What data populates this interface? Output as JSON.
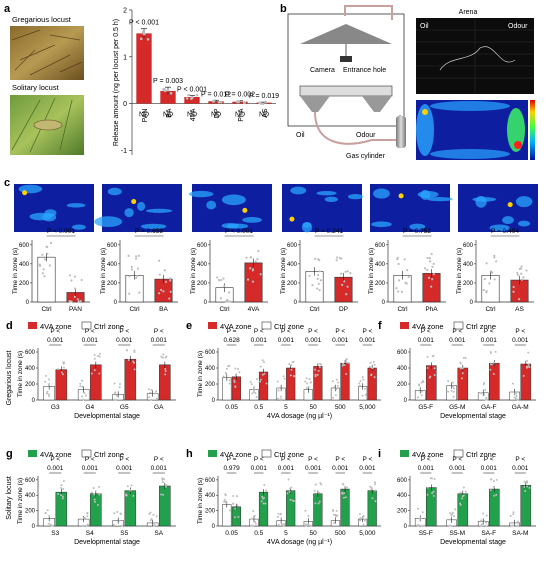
{
  "panel_labels": [
    "a",
    "b",
    "c",
    "d",
    "e",
    "f",
    "g",
    "h",
    "i"
  ],
  "colors": {
    "red": "#d42a2a",
    "green": "#22a04b",
    "dot": "#bdbdbd",
    "heat_bg": "#0d1fa0"
  },
  "panel_a": {
    "photo_labels": [
      "Gregarious locust",
      "Solitary locust"
    ],
    "ylabel": "Release amount (ng per locust per 0.5 h)",
    "ylim": [
      -1.1,
      2.0
    ],
    "yticks": [
      "2",
      "1",
      "0",
      "-1"
    ],
    "nd_label": "ND",
    "chart_data": {
      "type": "bar",
      "categories": [
        "PAN",
        "BA",
        "4VA",
        "DP",
        "PhA",
        "AS"
      ],
      "values": [
        1.5,
        0.27,
        0.14,
        0.05,
        0.04,
        0.02
      ],
      "errors": [
        0.1,
        0.08,
        0.03,
        0.02,
        0.02,
        0.01
      ],
      "pvalues": [
        "P < 0.001",
        "P = 0.003",
        "P < 0.001",
        "P = 0.012",
        "P = 0.002",
        "P = 0.019"
      ]
    }
  },
  "panel_b": {
    "camera": "Camera",
    "entrance": "Entrance hole",
    "oil": "Oil",
    "odour": "Odour",
    "gas": "Gas cylinder",
    "arena_title": "Arena",
    "arena_oil": "Oil",
    "arena_odour": "Odour"
  },
  "panel_c": {
    "ylabel": "Time in zone (s)",
    "yticks": [
      "600",
      "400",
      "200",
      "0"
    ],
    "charts": [
      {
        "categories": [
          "Ctrl",
          "PAN"
        ],
        "values": [
          470,
          100
        ],
        "pvalue": "P < 0.001"
      },
      {
        "categories": [
          "Ctrl",
          "BA"
        ],
        "values": [
          280,
          240
        ],
        "pvalue": "P = 0.658"
      },
      {
        "categories": [
          "Ctrl",
          "4VA"
        ],
        "values": [
          150,
          410
        ],
        "pvalue": "P < 0.001"
      },
      {
        "categories": [
          "Ctrl",
          "DP"
        ],
        "values": [
          320,
          260
        ],
        "pvalue": "P = 0.241"
      },
      {
        "categories": [
          "Ctrl",
          "PhA"
        ],
        "values": [
          280,
          300
        ],
        "pvalue": "P = 0.752"
      },
      {
        "categories": [
          "Ctrl",
          "AS"
        ],
        "values": [
          280,
          230
        ],
        "pvalue": "P = 0.404"
      }
    ]
  },
  "row_labels": [
    "Gregarious locust",
    "Solitary locust"
  ],
  "rows": [
    {
      "label": "d",
      "legend": [
        "4VA zone",
        "Ctrl zone"
      ],
      "color": "red",
      "xlabel": "Developmental stage",
      "ylabel": "Time in zone (s)",
      "yticks": [
        "600",
        "400",
        "200",
        "0"
      ],
      "chart_data": {
        "type": "bar",
        "categories": [
          "G3",
          "G4",
          "G5",
          "GA"
        ],
        "series": [
          {
            "name": "Ctrl zone",
            "values": [
              170,
              130,
              70,
              80
            ]
          },
          {
            "name": "4VA zone",
            "values": [
              380,
              440,
              510,
              440
            ]
          }
        ],
        "pvalue_top": [
          "P <",
          "P <",
          "P <",
          "P <"
        ],
        "pvalue_bot": [
          "0.001",
          "0.001",
          "0.001",
          "0.001"
        ]
      }
    },
    {
      "label": "e",
      "legend": [
        "4VA zone",
        "Ctrl zone"
      ],
      "color": "red",
      "xlabel": "4VA dosage (ng µl⁻¹)",
      "ylabel": "Time in zone (s)",
      "yticks": [
        "600",
        "400",
        "200",
        "0"
      ],
      "chart_data": {
        "type": "bar",
        "categories": [
          "0.05",
          "0.5",
          "5",
          "50",
          "500",
          "5,000"
        ],
        "series": [
          {
            "name": "Ctrl zone",
            "values": [
              280,
              130,
              150,
              130,
              150,
              170
            ]
          },
          {
            "name": "4VA zone",
            "values": [
              290,
              350,
              400,
              420,
              460,
              400
            ]
          }
        ],
        "pvalue_top": [
          "P =",
          "P <",
          "P <",
          "P <",
          "P <",
          "P <"
        ],
        "pvalue_bot": [
          "0.628",
          "0.001",
          "0.001",
          "0.001",
          "0.001",
          "0.001"
        ]
      }
    },
    {
      "label": "f",
      "legend": [
        "4VA zone",
        "Ctrl zone"
      ],
      "color": "red",
      "xlabel": "Developmental stage",
      "ylabel": "",
      "yticks": [
        "600",
        "400",
        "200",
        "0"
      ],
      "chart_data": {
        "type": "bar",
        "categories": [
          "G5-F",
          "G5-M",
          "GA-F",
          "GA-M"
        ],
        "series": [
          {
            "name": "Ctrl zone",
            "values": [
              120,
              180,
              90,
              100
            ]
          },
          {
            "name": "4VA zone",
            "values": [
              430,
              400,
              460,
              450
            ]
          }
        ],
        "pvalue_top": [
          "P <",
          "P <",
          "P <",
          "P <"
        ],
        "pvalue_bot": [
          "0.001",
          "0.001",
          "0.001",
          "0.001"
        ]
      }
    },
    {
      "label": "g",
      "legend": [
        "4VA zone",
        "Ctrl zone"
      ],
      "color": "green",
      "xlabel": "Developmental stage",
      "ylabel": "Time in zone (s)",
      "yticks": [
        "600",
        "400",
        "200",
        "0"
      ],
      "chart_data": {
        "type": "bar",
        "categories": [
          "S3",
          "S4",
          "S5",
          "SA"
        ],
        "series": [
          {
            "name": "Ctrl zone",
            "values": [
              100,
              90,
              70,
              40
            ]
          },
          {
            "name": "4VA zone",
            "values": [
              440,
              420,
              460,
              520
            ]
          }
        ],
        "pvalue_top": [
          "P <",
          "P <",
          "P <",
          "P <"
        ],
        "pvalue_bot": [
          "0.001",
          "0.001",
          "0.001",
          "0.001"
        ]
      }
    },
    {
      "label": "h",
      "legend": [
        "4VA zone",
        "Ctrl zone"
      ],
      "color": "green",
      "xlabel": "4VA dosage (ng µl⁻¹)",
      "ylabel": "Time in zone (s)",
      "yticks": [
        "600",
        "400",
        "200",
        "0"
      ],
      "chart_data": {
        "type": "bar",
        "categories": [
          "0.05",
          "0.5",
          "5",
          "50",
          "500",
          "5,000"
        ],
        "series": [
          {
            "name": "Ctrl zone",
            "values": [
              280,
              90,
              70,
              60,
              70,
              90
            ]
          },
          {
            "name": "4VA zone",
            "values": [
              250,
              440,
              460,
              420,
              480,
              460
            ]
          }
        ],
        "pvalue_top": [
          "P =",
          "P <",
          "P <",
          "P <",
          "P <",
          "P <"
        ],
        "pvalue_bot": [
          "0.979",
          "0.001",
          "0.001",
          "0.001",
          "0.001",
          "0.001"
        ]
      }
    },
    {
      "label": "i",
      "legend": [
        "4VA zone",
        "Ctrl zone"
      ],
      "color": "green",
      "xlabel": "Developmental stage",
      "ylabel": "",
      "yticks": [
        "600",
        "400",
        "200",
        "0"
      ],
      "chart_data": {
        "type": "bar",
        "categories": [
          "S5-F",
          "S5-M",
          "SA-F",
          "SA-M"
        ],
        "series": [
          {
            "name": "Ctrl zone",
            "values": [
              100,
              80,
              60,
              40
            ]
          },
          {
            "name": "4VA zone",
            "values": [
              500,
              420,
              480,
              530
            ]
          }
        ],
        "pvalue_top": [
          "P <",
          "P <",
          "P <",
          "P <"
        ],
        "pvalue_bot": [
          "0.001",
          "0.001",
          "0.001",
          "0.001"
        ]
      }
    }
  ]
}
